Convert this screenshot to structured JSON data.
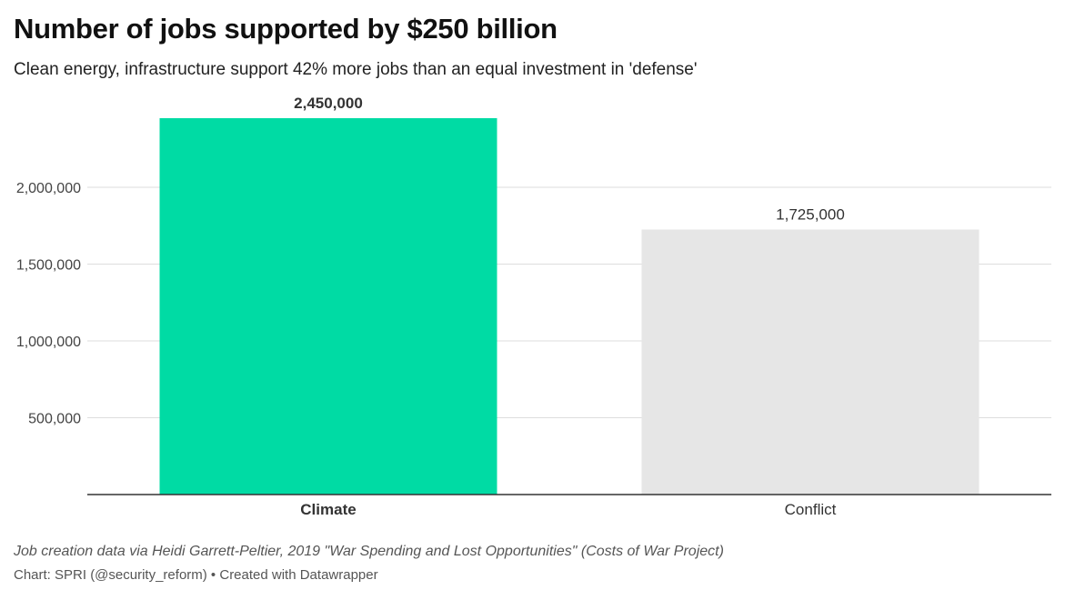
{
  "header": {
    "title": "Number of jobs supported by $250 billion",
    "subtitle": "Clean energy, infrastructure support 42% more jobs than an equal investment in 'defense'"
  },
  "chart_data": {
    "type": "bar",
    "categories": [
      "Climate",
      "Conflict"
    ],
    "values": [
      2450000,
      1725000
    ],
    "value_labels": [
      "2,450,000",
      "1,725,000"
    ],
    "highlighted": [
      "Climate"
    ],
    "bar_colors": [
      "#00dba4",
      "#e6e6e6"
    ],
    "ylim": [
      0,
      2450000
    ],
    "yticks": [
      500000,
      1000000,
      1500000,
      2000000
    ],
    "ytick_labels": [
      "500,000",
      "1,000,000",
      "1,500,000",
      "2,000,000"
    ],
    "grid": true,
    "title": "Number of jobs supported by $250 billion",
    "xlabel": "",
    "ylabel": ""
  },
  "footer": {
    "notes": "Job creation data via Heidi Garrett-Peltier, 2019 \"War Spending and Lost Opportunities\" (Costs of War Project)",
    "byline": "Chart: SPRI (@security_reform) • Created with Datawrapper"
  }
}
